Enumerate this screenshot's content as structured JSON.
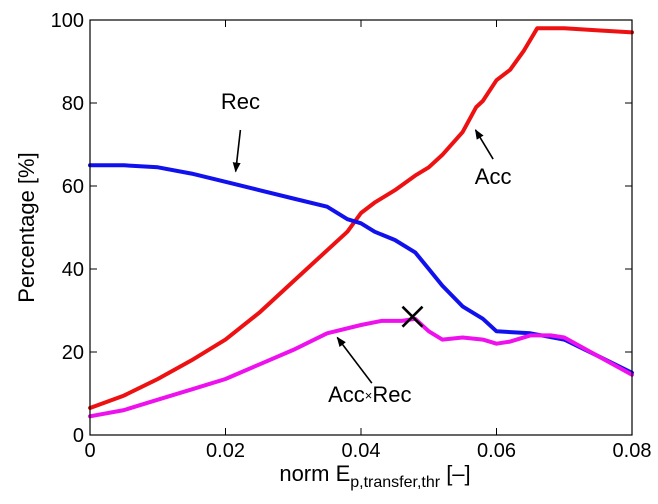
{
  "chart_data": {
    "type": "line",
    "xlabel_main": "norm E",
    "xlabel_sub": "p,transfer,thr",
    "xlabel_unit": " [–]",
    "ylabel": "Percentage [%]",
    "xlim": [
      0,
      0.08
    ],
    "ylim": [
      0,
      100
    ],
    "xticks": [
      0,
      0.02,
      0.04,
      0.06,
      0.08
    ],
    "xtick_labels": [
      "0",
      "0.02",
      "0.04",
      "0.06",
      "0.08"
    ],
    "yticks": [
      0,
      20,
      40,
      60,
      80,
      100
    ],
    "ytick_labels": [
      "0",
      "20",
      "40",
      "60",
      "80",
      "100"
    ],
    "grid": false,
    "series": [
      {
        "name": "Acc",
        "color": "#ee1111",
        "x": [
          0,
          0.005,
          0.01,
          0.015,
          0.02,
          0.025,
          0.03,
          0.035,
          0.038,
          0.04,
          0.042,
          0.045,
          0.048,
          0.05,
          0.052,
          0.055,
          0.057,
          0.058,
          0.06,
          0.062,
          0.064,
          0.066,
          0.068,
          0.07,
          0.075,
          0.08
        ],
        "y": [
          6.5,
          9.5,
          13.5,
          18,
          23,
          29.5,
          37,
          44.5,
          49,
          53.5,
          56,
          59,
          62.5,
          64.5,
          67.5,
          73,
          79,
          80.5,
          85.5,
          88,
          92.5,
          98,
          98,
          98,
          97.5,
          97
        ]
      },
      {
        "name": "Rec",
        "color": "#1111ee",
        "x": [
          0,
          0.005,
          0.01,
          0.015,
          0.02,
          0.025,
          0.03,
          0.035,
          0.038,
          0.04,
          0.042,
          0.045,
          0.048,
          0.05,
          0.052,
          0.055,
          0.058,
          0.06,
          0.065,
          0.07,
          0.075,
          0.08
        ],
        "y": [
          65,
          65,
          64.5,
          63,
          61,
          59,
          57,
          55,
          52,
          51,
          49,
          47,
          44,
          40,
          36,
          31,
          28,
          25,
          24.5,
          23,
          19,
          15
        ]
      },
      {
        "name": "Acc×Rec",
        "color": "#ee11ee",
        "x": [
          0,
          0.005,
          0.01,
          0.015,
          0.02,
          0.025,
          0.03,
          0.035,
          0.04,
          0.043,
          0.046,
          0.048,
          0.05,
          0.052,
          0.055,
          0.058,
          0.06,
          0.062,
          0.065,
          0.068,
          0.07,
          0.075,
          0.08
        ],
        "y": [
          4.5,
          6,
          8.5,
          11,
          13.5,
          17,
          20.5,
          24.5,
          26.5,
          27.5,
          27.5,
          28,
          25,
          23,
          23.5,
          23,
          22,
          22.5,
          24,
          24,
          23.5,
          19,
          14.5
        ]
      }
    ],
    "annotations": [
      {
        "text": "Rec",
        "label_x": 0.0222,
        "label_y": 78.5,
        "arrow_from": [
          0.0222,
          73.5
        ],
        "arrow_to": [
          0.0215,
          63.5
        ]
      },
      {
        "text": "Acc",
        "label_x": 0.0595,
        "label_y": 60.5,
        "arrow_from": [
          0.0595,
          66.5
        ],
        "arrow_to": [
          0.0569,
          73.5
        ]
      },
      {
        "text_left": "Acc",
        "text_mid": "×",
        "text_right": "Rec",
        "label_x": 0.0413,
        "label_y": 8,
        "arrow_from": [
          0.0416,
          12.5
        ],
        "arrow_to": [
          0.0365,
          23.5
        ]
      }
    ],
    "marker": {
      "symbol": "x",
      "x": 0.0476,
      "y": 28.5
    }
  }
}
